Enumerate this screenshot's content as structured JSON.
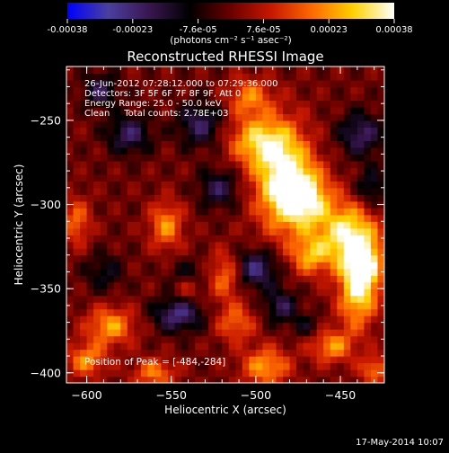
{
  "chart_data": {
    "type": "heatmap",
    "title": "Reconstructed RHESSI Image",
    "xlabel": "Heliocentric X (arcsec)",
    "ylabel": "Heliocentric Y (arcsec)",
    "xlim": [
      -612,
      -424
    ],
    "ylim": [
      -406,
      -218
    ],
    "xticks": [
      -600,
      -550,
      -500,
      -450
    ],
    "yticks": [
      -400,
      -350,
      -300,
      -250
    ],
    "grid": false,
    "colorbar": {
      "vmin": -0.00038,
      "vmax": 0.00038,
      "tick_labels": [
        "-0.00038",
        "-0.00023",
        "-7.6e-05",
        "7.6e-05",
        "0.00023",
        "0.00038"
      ],
      "units": "(photons cm⁻² s⁻¹ asec⁻²)",
      "colors": [
        "#0000ff",
        "#4b3fa0",
        "#3a1650",
        "#000000",
        "#6a0000",
        "#c81800",
        "#ff6a00",
        "#ffd200",
        "#ffffff"
      ]
    },
    "annotations": [
      "26-Jun-2012 07:28:12.000 to 07:29:36.000",
      "Detectors: 3F 5F 6F 7F 8F 9F, Att 0",
      "Energy Range: 25.0 - 50.0 keV",
      "Clean     Total counts: 2.78E+03"
    ],
    "peak_label": "Position of Peak = [-484,-284]",
    "sources": [
      {
        "x": -484,
        "y": -284,
        "sx": 12,
        "sy": 22,
        "amp": 0.00038
      },
      {
        "x": -470,
        "y": -296,
        "sx": 10,
        "sy": 12,
        "amp": 0.0003
      },
      {
        "x": -500,
        "y": -262,
        "sx": 12,
        "sy": 10,
        "amp": 0.00024
      },
      {
        "x": -446,
        "y": -318,
        "sx": 12,
        "sy": 14,
        "amp": 0.00034
      },
      {
        "x": -436,
        "y": -336,
        "sx": 8,
        "sy": 12,
        "amp": 0.0003
      },
      {
        "x": -440,
        "y": -355,
        "sx": 8,
        "sy": 14,
        "amp": 0.00026
      },
      {
        "x": -468,
        "y": -330,
        "sx": 8,
        "sy": 8,
        "amp": 0.00022
      },
      {
        "x": -504,
        "y": -236,
        "sx": 9,
        "sy": 8,
        "amp": 0.0002
      },
      {
        "x": -518,
        "y": -342,
        "sx": 7,
        "sy": 10,
        "amp": 0.0002
      },
      {
        "x": -512,
        "y": -370,
        "sx": 8,
        "sy": 8,
        "amp": 0.00018
      },
      {
        "x": -553,
        "y": -312,
        "sx": 7,
        "sy": 10,
        "amp": 0.00022
      },
      {
        "x": -606,
        "y": -310,
        "sx": 6,
        "sy": 10,
        "amp": 0.00018
      },
      {
        "x": -586,
        "y": -372,
        "sx": 10,
        "sy": 8,
        "amp": 0.00024
      },
      {
        "x": -600,
        "y": -392,
        "sx": 8,
        "sy": 7,
        "amp": 0.00022
      },
      {
        "x": -560,
        "y": -400,
        "sx": 9,
        "sy": 6,
        "amp": 0.0002
      },
      {
        "x": -494,
        "y": -396,
        "sx": 10,
        "sy": 8,
        "amp": 0.00024
      },
      {
        "x": -455,
        "y": -384,
        "sx": 9,
        "sy": 7,
        "amp": 0.00022
      },
      {
        "x": -430,
        "y": -398,
        "sx": 6,
        "sy": 6,
        "amp": 0.0002
      },
      {
        "x": -540,
        "y": -348,
        "sx": 6,
        "sy": 6,
        "amp": 0.00014
      },
      {
        "x": -575,
        "y": -258,
        "sx": 9,
        "sy": 8,
        "amp": -0.0002
      },
      {
        "x": -592,
        "y": -232,
        "sx": 7,
        "sy": 7,
        "amp": -0.00018
      },
      {
        "x": -533,
        "y": -252,
        "sx": 9,
        "sy": 9,
        "amp": -0.0002
      },
      {
        "x": -522,
        "y": -290,
        "sx": 8,
        "sy": 8,
        "amp": -0.00018
      },
      {
        "x": -540,
        "y": -342,
        "sx": 8,
        "sy": 6,
        "amp": -0.00014
      },
      {
        "x": -546,
        "y": -365,
        "sx": 10,
        "sy": 7,
        "amp": -0.00024
      },
      {
        "x": -500,
        "y": -338,
        "sx": 9,
        "sy": 8,
        "amp": -0.00024
      },
      {
        "x": -485,
        "y": -360,
        "sx": 7,
        "sy": 7,
        "amp": -0.00018
      },
      {
        "x": -438,
        "y": -258,
        "sx": 9,
        "sy": 9,
        "amp": -0.0002
      },
      {
        "x": -432,
        "y": -290,
        "sx": 6,
        "sy": 8,
        "amp": -0.00016
      },
      {
        "x": -590,
        "y": -340,
        "sx": 8,
        "sy": 8,
        "amp": -0.00012
      },
      {
        "x": -470,
        "y": -372,
        "sx": 6,
        "sy": 5,
        "amp": -0.0001
      }
    ]
  },
  "footer": {
    "timestamp": "17-May-2014 10:07"
  }
}
